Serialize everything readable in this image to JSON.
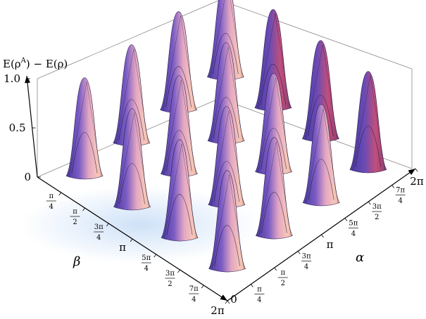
{
  "chart_data": {
    "type": "surface3d",
    "z_label": "E(ρ^A) − E(ρ)",
    "x_label": "β",
    "y_label": "α",
    "z_ticks": [
      "0",
      "0.5",
      "1.0"
    ],
    "z_range": [
      0,
      1
    ],
    "beta_range": [
      0,
      6.283
    ],
    "alpha_range": [
      0,
      6.283
    ],
    "beta_ticks": [
      {
        "value": 0.785,
        "num": "π",
        "den": "4"
      },
      {
        "value": 1.571,
        "num": "π",
        "den": "2"
      },
      {
        "value": 2.356,
        "num": "3π",
        "den": "4"
      },
      {
        "value": 3.142,
        "text": "π"
      },
      {
        "value": 3.927,
        "num": "5π",
        "den": "4"
      },
      {
        "value": 4.712,
        "num": "3π",
        "den": "2"
      },
      {
        "value": 5.498,
        "num": "7π",
        "den": "4"
      },
      {
        "value": 6.283,
        "text": "2π"
      }
    ],
    "alpha_ticks": [
      {
        "value": 0,
        "text": "0"
      },
      {
        "value": 0.785,
        "num": "π",
        "den": "4"
      },
      {
        "value": 1.571,
        "num": "π",
        "den": "2"
      },
      {
        "value": 2.356,
        "num": "3π",
        "den": "4"
      },
      {
        "value": 3.142,
        "text": "π"
      },
      {
        "value": 3.927,
        "num": "5π",
        "den": "4"
      },
      {
        "value": 4.712,
        "num": "3π",
        "den": "2"
      },
      {
        "value": 5.498,
        "num": "7π",
        "den": "4"
      },
      {
        "value": 6.283,
        "text": "2π"
      }
    ],
    "peak_beta": [
      0.785,
      2.356,
      3.927,
      5.498
    ],
    "peak_alpha": [
      0.785,
      2.356,
      3.927,
      5.498
    ],
    "peak_height": 1.0,
    "colors": {
      "peak_top": "#f2b8b0",
      "peak_mid": "#c98ab8",
      "peak_side": "#7b5cc4",
      "peak_shadow": "#4b3a9e",
      "front_peak": "#c14f7a",
      "base_glow": "#9ec3f0"
    }
  }
}
